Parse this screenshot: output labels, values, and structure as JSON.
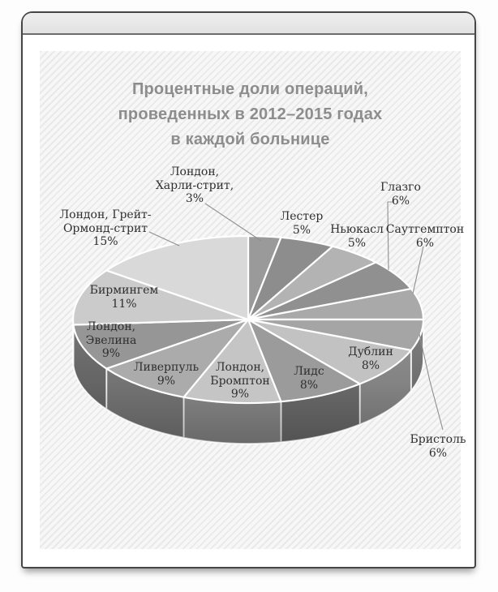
{
  "page": {
    "frame": {
      "header_color": "#e8e8e8",
      "border_color": "#454545",
      "body_color": "#ffffff",
      "panel_hatch_light": "#f7f7f7",
      "panel_hatch_dark": "#e9e9e9"
    }
  },
  "title": {
    "lines": [
      "Процентные доли операций,",
      "проведенных в 2012–2015 годах",
      "в каждой больнице"
    ],
    "color": "#8d8d8d"
  },
  "chart_data": {
    "type": "pie",
    "style": "3d-grayscale",
    "title": "Процентные доли операций, проведенных в 2012–2015 годах в каждой больнице",
    "unit": "%",
    "total": 100,
    "start_angle_deg": 0,
    "direction": "clockwise",
    "legend": "none",
    "data_labels": "category name with percent, some with leader lines",
    "slices": [
      {
        "label": "Лондон, Харли-стрит",
        "value": 3,
        "percent_text": "3%",
        "label_lines": [
          "Лондон,",
          "Харли-стрит,",
          "3%"
        ],
        "color": "#9a9a9a",
        "label_outside": true
      },
      {
        "label": "Лестер",
        "value": 5,
        "percent_text": "5%",
        "label_lines": [
          "Лестер",
          "5%"
        ],
        "color": "#8d8d8d",
        "label_outside": true
      },
      {
        "label": "Ньюкасл",
        "value": 5,
        "percent_text": "5%",
        "label_lines": [
          "Ньюкасл",
          "5%"
        ],
        "color": "#b3b3b3",
        "label_outside": true
      },
      {
        "label": "Глазго",
        "value": 6,
        "percent_text": "6%",
        "label_lines": [
          "Глазго",
          "6%"
        ],
        "color": "#909090",
        "label_outside": true
      },
      {
        "label": "Саутгемптон",
        "value": 6,
        "percent_text": "6%",
        "label_lines": [
          "Саутгемптон",
          "6%"
        ],
        "color": "#a9a9a9",
        "label_outside": true
      },
      {
        "label": "Бристоль",
        "value": 6,
        "percent_text": "6%",
        "label_lines": [
          "Бристоль",
          "6%"
        ],
        "color": "#a5a5a5",
        "label_outside": true
      },
      {
        "label": "Дублин",
        "value": 8,
        "percent_text": "8%",
        "label_lines": [
          "Дублин",
          "8%"
        ],
        "color": "#c2c2c2",
        "label_outside": false
      },
      {
        "label": "Лидс",
        "value": 8,
        "percent_text": "8%",
        "label_lines": [
          "Лидс",
          "8%"
        ],
        "color": "#9b9b9b",
        "label_outside": false
      },
      {
        "label": "Лондон, Бромптон",
        "value": 9,
        "percent_text": "9%",
        "label_lines": [
          "Лондон,",
          "Бромптон",
          "9%"
        ],
        "color": "#c5c5c5",
        "label_outside": false
      },
      {
        "label": "Ливерпуль",
        "value": 9,
        "percent_text": "9%",
        "label_lines": [
          "Ливерпуль",
          "9%"
        ],
        "color": "#ababab",
        "label_outside": false
      },
      {
        "label": "Лондон, Эвелина",
        "value": 9,
        "percent_text": "9%",
        "label_lines": [
          "Лондон,",
          "Эвелина",
          "9%"
        ],
        "color": "#969696",
        "label_outside": false
      },
      {
        "label": "Бирмингем",
        "value": 11,
        "percent_text": "11%",
        "label_lines": [
          "Бирмингем",
          "11%"
        ],
        "color": "#cbcbcb",
        "label_outside": false
      },
      {
        "label": "Лондон, Грейт-Ормонд-стрит",
        "value": 15,
        "percent_text": "15%",
        "label_lines": [
          "Лондон, Грейт-",
          "Ормонд-стрит",
          "15%"
        ],
        "color": "#d9d9d9",
        "label_outside": true
      }
    ]
  }
}
